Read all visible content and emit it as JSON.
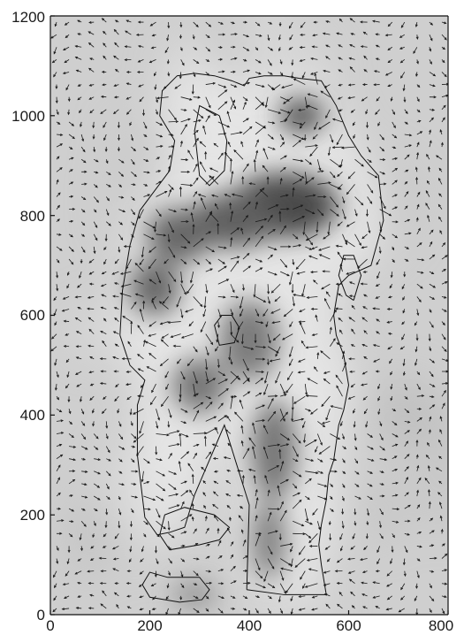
{
  "chart_data": {
    "type": "heatmap",
    "subtype": "vector-field-over-grayscale-contour",
    "title": "",
    "xlabel": "",
    "ylabel": "",
    "xlim": [
      0,
      800
    ],
    "ylim": [
      0,
      1200
    ],
    "x_ticks": [
      0,
      200,
      400,
      600,
      800
    ],
    "y_ticks": [
      0,
      200,
      400,
      600,
      800,
      1000,
      1200
    ],
    "x_tick_labels": [
      "0",
      "200",
      "400",
      "600",
      "800"
    ],
    "y_tick_labels": [
      "0",
      "200",
      "400",
      "600",
      "800",
      "1000",
      "1200"
    ],
    "grid": false,
    "legend": "none",
    "colormap": "grayscale (light background, dark intensity peaks)",
    "vector_field": {
      "grid_spacing": 25,
      "x_range": [
        0,
        800
      ],
      "y_range": [
        0,
        1200
      ],
      "description": "dense field of short arrows, larger magnitudes inside the outlined shape"
    },
    "dark_regions": [
      {
        "x": 505,
        "y": 1000,
        "rx": 45,
        "ry": 35,
        "intensity": 0.85
      },
      {
        "x": 470,
        "y": 820,
        "rx": 110,
        "ry": 65,
        "intensity": 0.9
      },
      {
        "x": 370,
        "y": 790,
        "rx": 90,
        "ry": 55,
        "intensity": 0.75
      },
      {
        "x": 260,
        "y": 760,
        "rx": 65,
        "ry": 55,
        "intensity": 0.7
      },
      {
        "x": 210,
        "y": 655,
        "rx": 50,
        "ry": 55,
        "intensity": 0.7
      },
      {
        "x": 300,
        "y": 460,
        "rx": 55,
        "ry": 55,
        "intensity": 0.6
      },
      {
        "x": 400,
        "y": 550,
        "rx": 60,
        "ry": 80,
        "intensity": 0.55
      },
      {
        "x": 450,
        "y": 330,
        "rx": 45,
        "ry": 100,
        "intensity": 0.6
      },
      {
        "x": 440,
        "y": 150,
        "rx": 35,
        "ry": 80,
        "intensity": 0.5
      },
      {
        "x": 290,
        "y": 40,
        "rx": 45,
        "ry": 25,
        "intensity": 0.4
      }
    ],
    "contours": [
      {
        "name": "outer-silhouette",
        "points": [
          [
            395,
            50
          ],
          [
            400,
            220
          ],
          [
            350,
            380
          ],
          [
            290,
            240
          ],
          [
            270,
            175
          ],
          [
            240,
            165
          ],
          [
            215,
            160
          ],
          [
            190,
            195
          ],
          [
            175,
            320
          ],
          [
            175,
            420
          ],
          [
            190,
            470
          ],
          [
            160,
            500
          ],
          [
            140,
            560
          ],
          [
            145,
            650
          ],
          [
            160,
            740
          ],
          [
            180,
            810
          ],
          [
            210,
            850
          ],
          [
            240,
            890
          ],
          [
            250,
            950
          ],
          [
            220,
            1000
          ],
          [
            225,
            1050
          ],
          [
            255,
            1080
          ],
          [
            290,
            1085
          ],
          [
            330,
            1080
          ],
          [
            365,
            1070
          ],
          [
            390,
            1060
          ],
          [
            400,
            1075
          ],
          [
            430,
            1080
          ],
          [
            470,
            1080
          ],
          [
            500,
            1075
          ],
          [
            545,
            1070
          ],
          [
            560,
            1045
          ],
          [
            575,
            1020
          ],
          [
            600,
            960
          ],
          [
            625,
            920
          ],
          [
            660,
            880
          ],
          [
            670,
            790
          ],
          [
            645,
            700
          ],
          [
            600,
            680
          ],
          [
            580,
            660
          ],
          [
            570,
            600
          ],
          [
            575,
            560
          ],
          [
            590,
            520
          ],
          [
            600,
            460
          ],
          [
            590,
            410
          ],
          [
            580,
            380
          ],
          [
            570,
            310
          ],
          [
            560,
            280
          ],
          [
            555,
            230
          ],
          [
            545,
            180
          ],
          [
            540,
            140
          ],
          [
            545,
            100
          ],
          [
            555,
            40
          ],
          [
            470,
            40
          ],
          [
            395,
            50
          ]
        ]
      },
      {
        "name": "inner-left-hole",
        "points": [
          [
            340,
            1000
          ],
          [
            300,
            1020
          ],
          [
            290,
            970
          ],
          [
            300,
            880
          ],
          [
            320,
            860
          ],
          [
            350,
            890
          ],
          [
            355,
            950
          ],
          [
            340,
            1000
          ]
        ]
      },
      {
        "name": "inner-right-hole",
        "points": [
          [
            610,
            630
          ],
          [
            625,
            680
          ],
          [
            610,
            720
          ],
          [
            590,
            720
          ],
          [
            580,
            680
          ],
          [
            595,
            640
          ],
          [
            610,
            630
          ]
        ]
      },
      {
        "name": "lower-left-blob",
        "points": [
          [
            330,
            200
          ],
          [
            270,
            215
          ],
          [
            230,
            200
          ],
          [
            220,
            160
          ],
          [
            240,
            130
          ],
          [
            300,
            140
          ],
          [
            340,
            150
          ],
          [
            360,
            175
          ],
          [
            330,
            200
          ]
        ]
      },
      {
        "name": "bottom-left-blob",
        "points": [
          [
            235,
            75
          ],
          [
            200,
            85
          ],
          [
            185,
            60
          ],
          [
            200,
            35
          ],
          [
            260,
            25
          ],
          [
            305,
            30
          ],
          [
            320,
            50
          ],
          [
            300,
            75
          ],
          [
            235,
            75
          ]
        ]
      },
      {
        "name": "center-small-loop",
        "points": [
          [
            345,
            600
          ],
          [
            330,
            580
          ],
          [
            340,
            540
          ],
          [
            370,
            545
          ],
          [
            380,
            575
          ],
          [
            365,
            600
          ],
          [
            345,
            600
          ]
        ]
      }
    ]
  }
}
